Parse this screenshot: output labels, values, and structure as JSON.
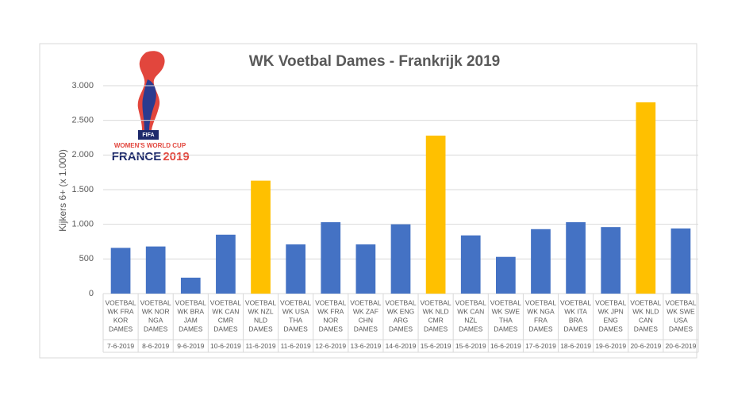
{
  "chart_data": {
    "type": "bar",
    "title": "WK Voetbal Dames - Frankrijk 2019",
    "y_label": "Kijkers 6+ (x 1.000)",
    "match_labels": [
      [
        "VOETBAL",
        "WK FRA",
        "KOR",
        "DAMES"
      ],
      [
        "VOETBAL",
        "WK NOR",
        "NGA",
        "DAMES"
      ],
      [
        "VOETBAL",
        "WK BRA",
        "JAM",
        "DAMES"
      ],
      [
        "VOETBAL",
        "WK CAN",
        "CMR",
        "DAMES"
      ],
      [
        "VOETBAL",
        "WK NZL",
        "NLD",
        "DAMES"
      ],
      [
        "VOETBAL",
        "WK USA",
        "THA",
        "DAMES"
      ],
      [
        "VOETBAL",
        "WK FRA",
        "NOR",
        "DAMES"
      ],
      [
        "VOETBAL",
        "WK ZAF",
        "CHN",
        "DAMES"
      ],
      [
        "VOETBAL",
        "WK ENG",
        "ARG",
        "DAMES"
      ],
      [
        "VOETBAL",
        "WK NLD",
        "CMR",
        "DAMES"
      ],
      [
        "VOETBAL",
        "WK CAN",
        "NZL",
        "DAMES"
      ],
      [
        "VOETBAL",
        "WK SWE",
        "THA",
        "DAMES"
      ],
      [
        "VOETBAL",
        "WK NGA",
        "FRA",
        "DAMES"
      ],
      [
        "VOETBAL",
        "WK ITA",
        "BRA",
        "DAMES"
      ],
      [
        "VOETBAL",
        "WK JPN",
        "ENG",
        "DAMES"
      ],
      [
        "VOETBAL",
        "WK NLD",
        "CAN",
        "DAMES"
      ],
      [
        "VOETBAL",
        "WK SWE",
        "USA",
        "DAMES"
      ]
    ],
    "categories": [
      "7-6-2019",
      "8-6-2019",
      "9-6-2019",
      "10-6-2019",
      "11-6-2019",
      "11-6-2019",
      "12-6-2019",
      "13-6-2019",
      "14-6-2019",
      "15-6-2019",
      "15-6-2019",
      "16-6-2019",
      "17-6-2019",
      "18-6-2019",
      "19-6-2019",
      "20-6-2019",
      "20-6-2019"
    ],
    "values": [
      660,
      680,
      230,
      850,
      1630,
      710,
      1030,
      710,
      1000,
      2280,
      840,
      530,
      930,
      1030,
      960,
      2760,
      940
    ],
    "colors": [
      "#4472c4",
      "#4472c4",
      "#4472c4",
      "#4472c4",
      "#ffc000",
      "#4472c4",
      "#4472c4",
      "#4472c4",
      "#4472c4",
      "#ffc000",
      "#4472c4",
      "#4472c4",
      "#4472c4",
      "#4472c4",
      "#4472c4",
      "#ffc000",
      "#4472c4"
    ],
    "ylim": [
      0,
      3000
    ],
    "yticks": [
      0,
      {
        "value": 500,
        "label": "500"
      },
      {
        "value": 1000,
        "label": "1.000"
      },
      {
        "value": 1500,
        "label": "1.500"
      },
      {
        "value": 2000,
        "label": "2.000"
      },
      {
        "value": 2500,
        "label": "2.500"
      },
      {
        "value": 3000,
        "label": "3.000"
      }
    ],
    "grid": true,
    "logo": {
      "badge": "FIFA",
      "line1": "WOMEN'S WORLD CUP",
      "line2a": "FRANCE",
      "line2b": "2019"
    }
  }
}
